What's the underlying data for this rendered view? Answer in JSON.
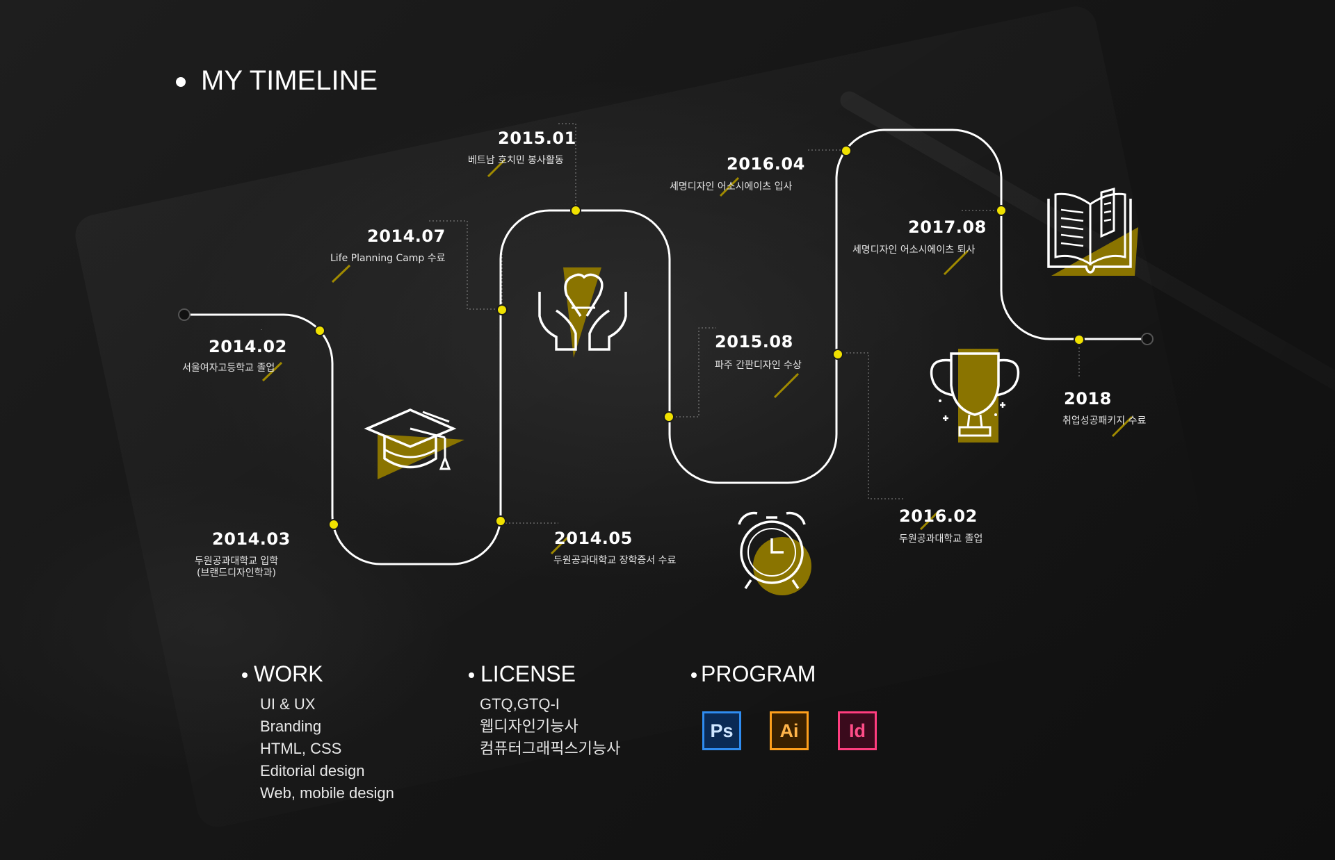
{
  "header": {
    "title": "MY TIMELINE"
  },
  "colors": {
    "accent": "#f0e100",
    "icon_fill": "#8a7400",
    "line": "#ffffff"
  },
  "events": [
    {
      "date": "2014.02",
      "desc": "서울여자고등학교 졸업"
    },
    {
      "date": "2014.03",
      "desc": "두원공과대학교 입학",
      "desc2": "(브랜드디자인학과)"
    },
    {
      "date": "2014.07",
      "desc": "Life Planning Camp 수료"
    },
    {
      "date": "2015.01",
      "desc": "베트남 호치민 봉사활동"
    },
    {
      "date": "2014.05",
      "desc": "두원공과대학교 장학증서 수료"
    },
    {
      "date": "2016.04",
      "desc": "세명디자인 어소시에이츠 입사"
    },
    {
      "date": "2015.08",
      "desc": "파주 간판디자인 수상"
    },
    {
      "date": "2017.08",
      "desc": "세명디자인 어소시에이츠 퇴사"
    },
    {
      "date": "2016.02",
      "desc": "두원공과대학교 졸업"
    },
    {
      "date": "2018",
      "desc": "취업성공패키지 수료"
    }
  ],
  "icons": [
    "graduation-cap-icon",
    "awareness-ribbon-hands-icon",
    "alarm-clock-icon",
    "trophy-icon",
    "open-book-icon"
  ],
  "work": {
    "heading": "WORK",
    "items": [
      "UI & UX",
      "Branding",
      "HTML, CSS",
      "Editorial design",
      "Web, mobile design"
    ]
  },
  "license": {
    "heading": "LICENSE",
    "items": [
      "GTQ,GTQ-I",
      "웹디자인기능사",
      "컴퓨터그래픽스기능사"
    ]
  },
  "program": {
    "heading": "PROGRAM",
    "items": [
      {
        "label": "Ps",
        "color": "#2f8cf0",
        "bg": "#061e3d",
        "icon": "photoshop-icon"
      },
      {
        "label": "Ai",
        "color": "#ff9f1c",
        "bg": "#3a2000",
        "icon": "illustrator-icon"
      },
      {
        "label": "Id",
        "color": "#ff3d7f",
        "bg": "#3a0a1c",
        "icon": "indesign-icon"
      }
    ]
  }
}
